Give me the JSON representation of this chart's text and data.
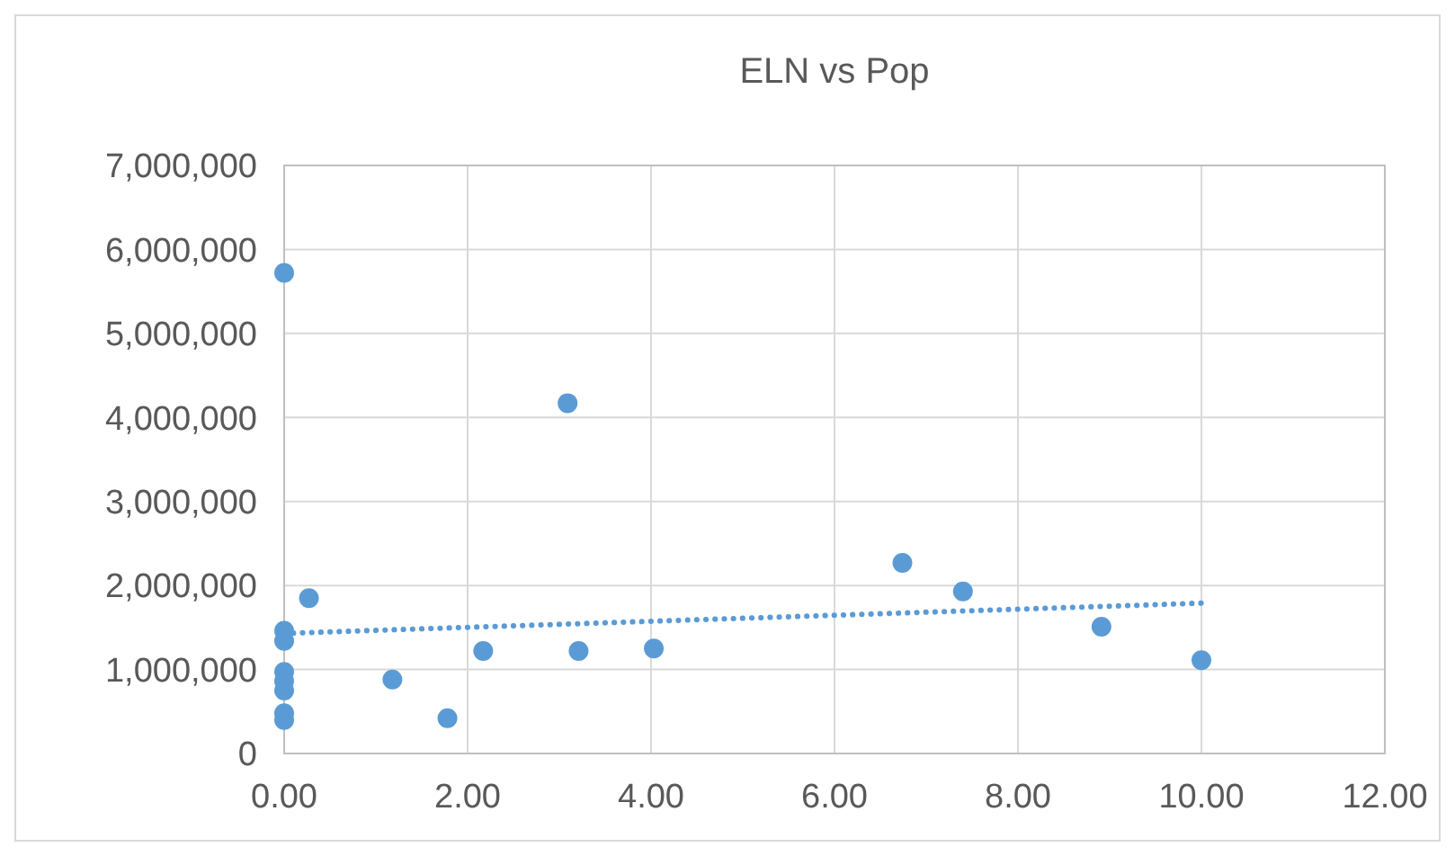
{
  "chart_data": {
    "type": "scatter",
    "title": "ELN vs Pop",
    "xlim": [
      0,
      12
    ],
    "xticks": [
      {
        "value": 0,
        "label": "0.00"
      },
      {
        "value": 2,
        "label": "2.00"
      },
      {
        "value": 4,
        "label": "4.00"
      },
      {
        "value": 6,
        "label": "6.00"
      },
      {
        "value": 8,
        "label": "8.00"
      },
      {
        "value": 10,
        "label": "10.00"
      },
      {
        "value": 12,
        "label": "12.00"
      }
    ],
    "ylim": [
      0,
      7000000
    ],
    "yticks": [
      {
        "value": 0,
        "label": "0"
      },
      {
        "value": 1000000,
        "label": "1,000,000"
      },
      {
        "value": 2000000,
        "label": "2,000,000"
      },
      {
        "value": 3000000,
        "label": "3,000,000"
      },
      {
        "value": 4000000,
        "label": "4,000,000"
      },
      {
        "value": 5000000,
        "label": "5,000,000"
      },
      {
        "value": 6000000,
        "label": "6,000,000"
      },
      {
        "value": 7000000,
        "label": "7,000,000"
      }
    ],
    "grid": true,
    "marker": "circle",
    "series": [
      {
        "color": "#5b9bd5",
        "x": [
          0,
          0,
          0,
          0,
          0,
          0,
          0,
          0,
          0.27,
          1.18,
          1.78,
          2.17,
          3.09,
          3.21,
          4.03,
          6.74,
          7.4,
          8.91,
          10
        ],
        "values": [
          5720000,
          1460000,
          1340000,
          970000,
          860000,
          750000,
          480000,
          400000,
          1850000,
          880000,
          420000,
          1220000,
          4170000,
          1220000,
          1250000,
          2270000,
          1930000,
          1510000,
          1110000
        ]
      },
      {
        "type": "line",
        "color": "#5b9bd5",
        "line_style": "dotted",
        "marker": "none",
        "x": [
          0,
          10
        ],
        "values": [
          1430000,
          1790000
        ]
      }
    ]
  }
}
